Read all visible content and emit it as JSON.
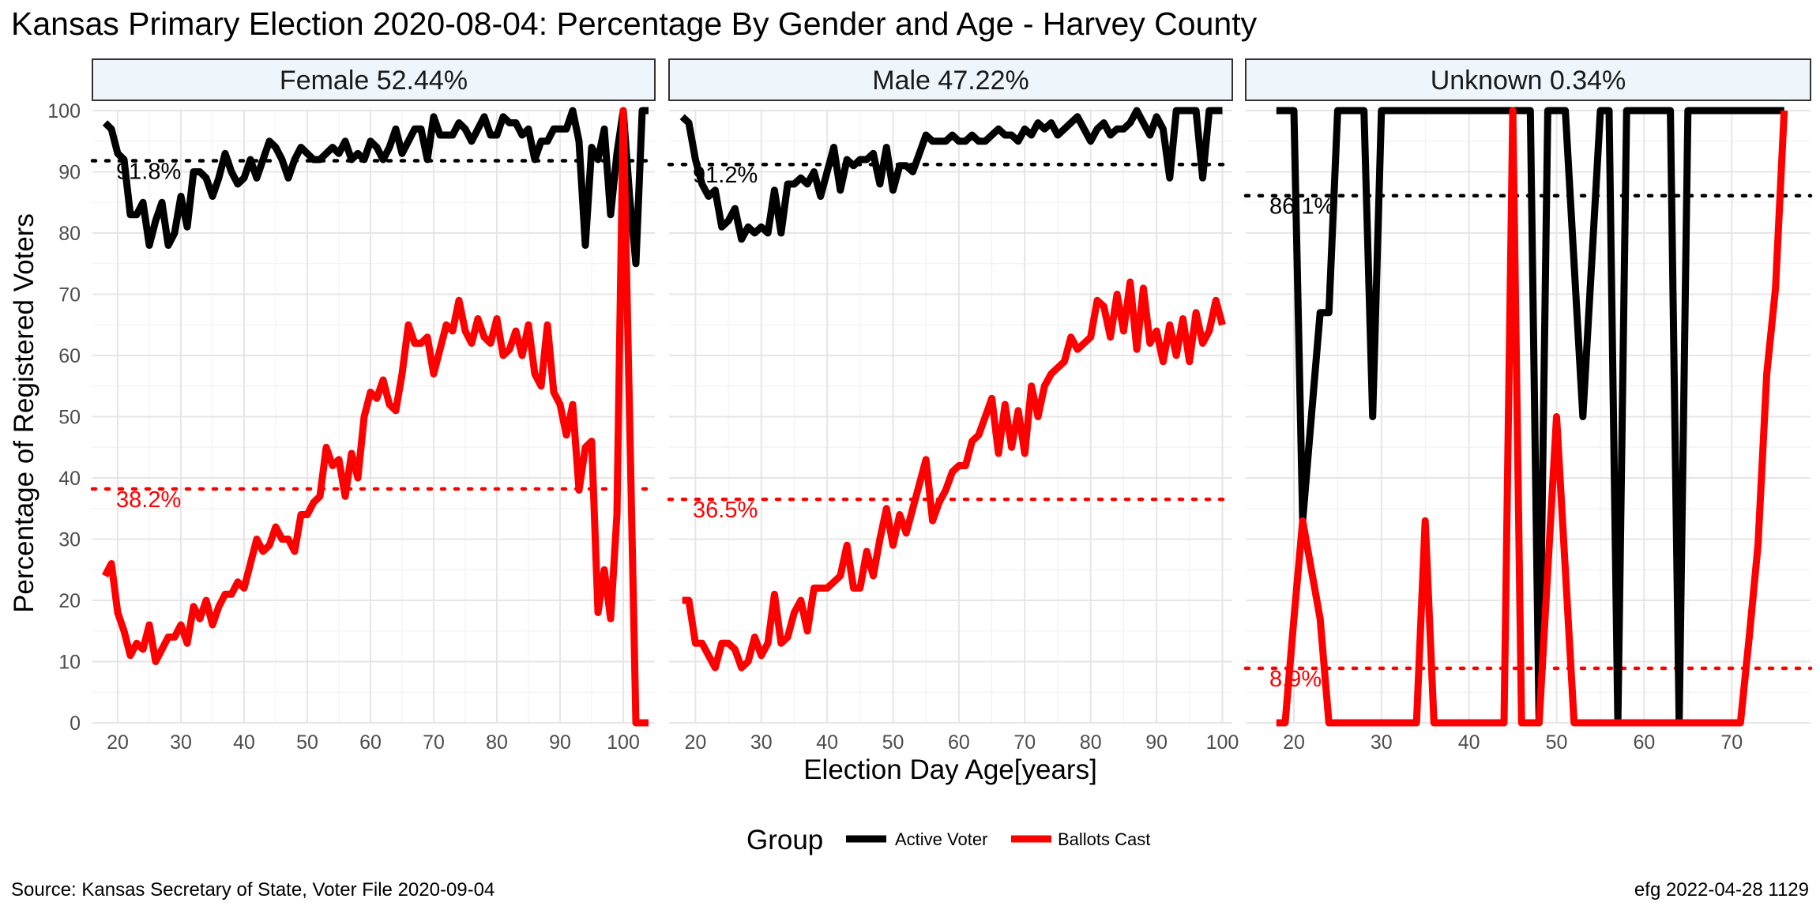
{
  "chart_data": {
    "type": "line",
    "title": "Kansas Primary Election 2020-08-04:  Percentage By Gender and Age - Harvey County",
    "xlabel": "Election Day Age[years]",
    "ylabel": "Percentage of Registered Voters",
    "ylim": [
      0,
      100
    ],
    "y_ticks": [
      0,
      10,
      20,
      30,
      40,
      50,
      60,
      70,
      80,
      90,
      100
    ],
    "grid": true,
    "legend": {
      "title": "Group",
      "placement": "bottom",
      "entries": [
        {
          "label": "Active Voter",
          "color": "#000000"
        },
        {
          "label": "Ballots Cast",
          "color": "#ff0000"
        }
      ]
    },
    "source_caption": "Source:  Kansas Secretary of State, Voter File  2020-09-04",
    "stamp": "efg 2022-04-28 1129",
    "panels": [
      {
        "strip": "Female 52.44%",
        "xlim": [
          16,
          105
        ],
        "x_ticks": [
          20,
          30,
          40,
          50,
          60,
          70,
          80,
          90,
          100
        ],
        "avg_labels": [
          {
            "text": "91.8%",
            "value": 91.8,
            "color": "#000000"
          },
          {
            "text": "38.2%",
            "value": 38.2,
            "color": "#ff0000"
          }
        ],
        "series": [
          {
            "name": "Active Voter",
            "color": "#000000",
            "x": [
              18,
              19,
              20,
              21,
              22,
              23,
              24,
              25,
              26,
              27,
              28,
              29,
              30,
              31,
              32,
              33,
              34,
              35,
              36,
              37,
              38,
              39,
              40,
              41,
              42,
              43,
              44,
              45,
              46,
              47,
              48,
              49,
              50,
              51,
              52,
              53,
              54,
              55,
              56,
              57,
              58,
              59,
              60,
              61,
              62,
              63,
              64,
              65,
              66,
              67,
              68,
              69,
              70,
              71,
              72,
              73,
              74,
              75,
              76,
              77,
              78,
              79,
              80,
              81,
              82,
              83,
              84,
              85,
              86,
              87,
              88,
              89,
              90,
              91,
              92,
              93,
              94,
              95,
              96,
              97,
              98,
              99,
              100,
              101,
              102,
              103,
              104
            ],
            "y": [
              98,
              97,
              93,
              92,
              83,
              83,
              85,
              78,
              82,
              85,
              78,
              80,
              86,
              81,
              90,
              90,
              89,
              86,
              89,
              93,
              90,
              88,
              89,
              92,
              89,
              92,
              95,
              94,
              92,
              89,
              92,
              94,
              93,
              92,
              92,
              93,
              94,
              93,
              95,
              92,
              93,
              92,
              95,
              94,
              92,
              94,
              97,
              93,
              95,
              97,
              97,
              92,
              99,
              96,
              96,
              96,
              98,
              97,
              95,
              97,
              99,
              96,
              96,
              99,
              98,
              98,
              96,
              97,
              92,
              95,
              95,
              97,
              97,
              97,
              100,
              95,
              78,
              94,
              92,
              97,
              83,
              93,
              100,
              86,
              75,
              100,
              100
            ]
          },
          {
            "name": "Ballots Cast",
            "color": "#ff0000",
            "x": [
              18,
              19,
              20,
              21,
              22,
              23,
              24,
              25,
              26,
              27,
              28,
              29,
              30,
              31,
              32,
              33,
              34,
              35,
              36,
              37,
              38,
              39,
              40,
              41,
              42,
              43,
              44,
              45,
              46,
              47,
              48,
              49,
              50,
              51,
              52,
              53,
              54,
              55,
              56,
              57,
              58,
              59,
              60,
              61,
              62,
              63,
              64,
              65,
              66,
              67,
              68,
              69,
              70,
              71,
              72,
              73,
              74,
              75,
              76,
              77,
              78,
              79,
              80,
              81,
              82,
              83,
              84,
              85,
              86,
              87,
              88,
              89,
              90,
              91,
              92,
              93,
              94,
              95,
              96,
              97,
              98,
              99,
              100,
              101,
              102,
              103,
              104
            ],
            "y": [
              24,
              26,
              18,
              15,
              11,
              13,
              12,
              16,
              10,
              12,
              14,
              14,
              16,
              13,
              19,
              17,
              20,
              16,
              19,
              21,
              21,
              23,
              22,
              26,
              30,
              28,
              29,
              32,
              30,
              30,
              28,
              34,
              34,
              36,
              37,
              45,
              42,
              43,
              37,
              44,
              40,
              50,
              54,
              53,
              56,
              52,
              51,
              57,
              65,
              62,
              62,
              63,
              57,
              61,
              65,
              64,
              69,
              64,
              62,
              66,
              63,
              62,
              66,
              60,
              61,
              64,
              60,
              65,
              57,
              55,
              65,
              54,
              52,
              47,
              52,
              38,
              45,
              46,
              18,
              25,
              17,
              34,
              100,
              50,
              0,
              0,
              0
            ]
          }
        ]
      },
      {
        "strip": "Male 47.22%",
        "xlim": [
          16,
          101.5
        ],
        "x_ticks": [
          20,
          30,
          40,
          50,
          60,
          70,
          80,
          90,
          100
        ],
        "avg_labels": [
          {
            "text": "91.2%",
            "value": 91.2,
            "color": "#000000"
          },
          {
            "text": "36.5%",
            "value": 36.5,
            "color": "#ff0000"
          }
        ],
        "series": [
          {
            "name": "Active Voter",
            "color": "#000000",
            "x": [
              18,
              19,
              20,
              21,
              22,
              23,
              24,
              25,
              26,
              27,
              28,
              29,
              30,
              31,
              32,
              33,
              34,
              35,
              36,
              37,
              38,
              39,
              40,
              41,
              42,
              43,
              44,
              45,
              46,
              47,
              48,
              49,
              50,
              51,
              52,
              53,
              54,
              55,
              56,
              57,
              58,
              59,
              60,
              61,
              62,
              63,
              64,
              65,
              66,
              67,
              68,
              69,
              70,
              71,
              72,
              73,
              74,
              75,
              76,
              77,
              78,
              79,
              80,
              81,
              82,
              83,
              84,
              85,
              86,
              87,
              88,
              89,
              90,
              91,
              92,
              93,
              94,
              95,
              96,
              97,
              98,
              99,
              100
            ],
            "y": [
              99,
              98,
              92,
              88,
              86,
              87,
              81,
              82,
              84,
              79,
              81,
              80,
              81,
              80,
              87,
              80,
              88,
              88,
              89,
              88,
              90,
              86,
              90,
              94,
              87,
              92,
              91,
              92,
              92,
              93,
              88,
              94,
              87,
              91,
              91,
              90,
              93,
              96,
              95,
              95,
              95,
              96,
              95,
              95,
              96,
              95,
              95,
              96,
              97,
              96,
              96,
              95,
              97,
              96,
              98,
              97,
              98,
              96,
              97,
              98,
              99,
              97,
              95,
              97,
              98,
              96,
              97,
              97,
              98,
              100,
              98,
              96,
              99,
              97,
              89,
              100,
              100,
              100,
              100,
              89,
              100,
              100,
              100
            ]
          },
          {
            "name": "Ballots Cast",
            "color": "#ff0000",
            "x": [
              18,
              19,
              20,
              21,
              22,
              23,
              24,
              25,
              26,
              27,
              28,
              29,
              30,
              31,
              32,
              33,
              34,
              35,
              36,
              37,
              38,
              39,
              40,
              41,
              42,
              43,
              44,
              45,
              46,
              47,
              48,
              49,
              50,
              51,
              52,
              53,
              54,
              55,
              56,
              57,
              58,
              59,
              60,
              61,
              62,
              63,
              64,
              65,
              66,
              67,
              68,
              69,
              70,
              71,
              72,
              73,
              74,
              75,
              76,
              77,
              78,
              79,
              80,
              81,
              82,
              83,
              84,
              85,
              86,
              87,
              88,
              89,
              90,
              91,
              92,
              93,
              94,
              95,
              96,
              97,
              98,
              99,
              100
            ],
            "y": [
              20,
              20,
              13,
              13,
              11,
              9,
              13,
              13,
              12,
              9,
              10,
              14,
              11,
              13,
              21,
              13,
              14,
              18,
              20,
              15,
              22,
              22,
              22,
              23,
              24,
              29,
              22,
              22,
              28,
              24,
              30,
              35,
              29,
              34,
              31,
              35,
              39,
              43,
              33,
              36,
              38,
              41,
              42,
              42,
              46,
              47,
              50,
              53,
              44,
              52,
              45,
              51,
              44,
              55,
              50,
              55,
              57,
              58,
              59,
              63,
              61,
              62,
              63,
              69,
              68,
              63,
              70,
              64,
              72,
              61,
              71,
              62,
              64,
              59,
              65,
              60,
              66,
              59,
              67,
              62,
              64,
              69,
              65
            ]
          }
        ]
      },
      {
        "strip": "Unknown 0.34%",
        "xlim": [
          14.5,
          79
        ],
        "x_ticks": [
          20,
          30,
          40,
          50,
          60,
          70
        ],
        "avg_labels": [
          {
            "text": "86.1%",
            "value": 86.1,
            "color": "#000000"
          },
          {
            "text": "8.9%",
            "value": 8.9,
            "color": "#ff0000"
          }
        ],
        "series": [
          {
            "name": "Active Voter",
            "color": "#000000",
            "x": [
              18,
              19,
              20,
              21,
              22,
              23,
              24,
              25,
              26,
              27,
              28,
              29,
              30,
              31,
              32,
              33,
              34,
              35,
              36,
              37,
              38,
              39,
              40,
              41,
              42,
              43,
              44,
              45,
              46,
              47,
              48,
              49,
              50,
              51,
              52,
              53,
              54,
              55,
              56,
              57,
              58,
              59,
              60,
              61,
              62,
              63,
              64,
              65,
              66,
              67,
              68,
              69,
              70,
              71,
              72,
              73,
              74,
              75,
              76
            ],
            "y": [
              100,
              100,
              100,
              33,
              50,
              67,
              67,
              100,
              100,
              100,
              100,
              50,
              100,
              100,
              100,
              100,
              100,
              100,
              100,
              100,
              100,
              100,
              100,
              100,
              100,
              100,
              100,
              100,
              100,
              100,
              0,
              100,
              100,
              100,
              75,
              50,
              75,
              100,
              100,
              0,
              100,
              100,
              100,
              100,
              100,
              100,
              0,
              100,
              100,
              100,
              100,
              100,
              100,
              100,
              100,
              100,
              100,
              100,
              100
            ]
          },
          {
            "name": "Ballots Cast",
            "color": "#ff0000",
            "x": [
              18,
              19,
              20,
              21,
              22,
              23,
              24,
              25,
              26,
              27,
              28,
              29,
              30,
              31,
              32,
              33,
              34,
              35,
              36,
              37,
              38,
              39,
              40,
              41,
              42,
              43,
              44,
              45,
              46,
              47,
              48,
              49,
              50,
              51,
              52,
              53,
              54,
              55,
              56,
              57,
              58,
              59,
              60,
              61,
              62,
              63,
              64,
              65,
              66,
              67,
              68,
              69,
              70,
              71,
              72,
              73,
              74,
              75,
              76
            ],
            "y": [
              0,
              0,
              17,
              33,
              25,
              17,
              0,
              0,
              0,
              0,
              0,
              0,
              0,
              0,
              0,
              0,
              0,
              33,
              0,
              0,
              0,
              0,
              0,
              0,
              0,
              0,
              0,
              100,
              0,
              0,
              0,
              25,
              50,
              25,
              0,
              0,
              0,
              0,
              0,
              0,
              0,
              0,
              0,
              0,
              0,
              0,
              0,
              0,
              0,
              0,
              0,
              0,
              0,
              0,
              14,
              29,
              57,
              71,
              100
            ]
          }
        ]
      }
    ]
  }
}
